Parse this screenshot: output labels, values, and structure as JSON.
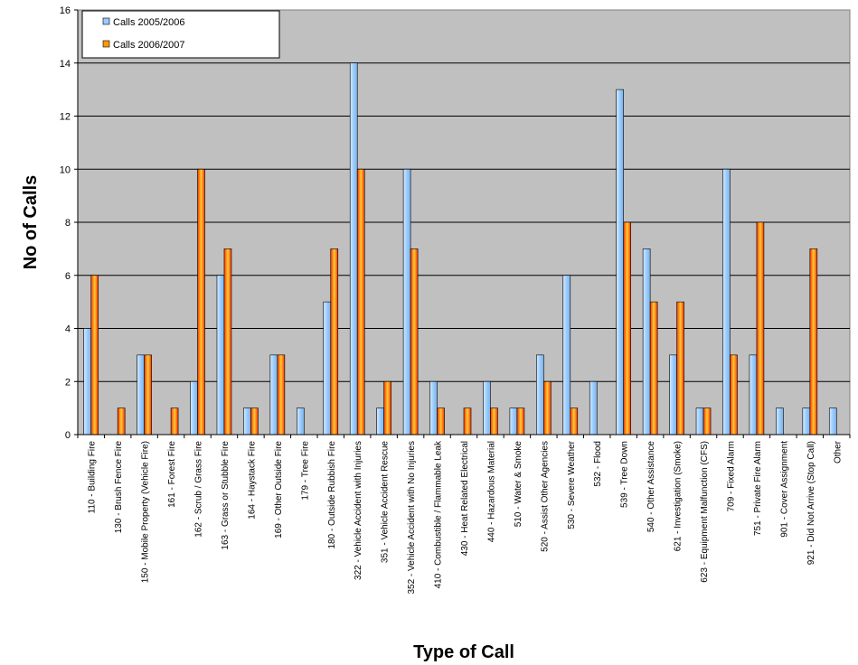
{
  "chart_data": {
    "type": "bar",
    "title": "",
    "xlabel": "Type of Call",
    "ylabel": "No of Calls",
    "ylim": [
      0,
      16
    ],
    "yticks": [
      0,
      2,
      4,
      6,
      8,
      10,
      12,
      14,
      16
    ],
    "grid": true,
    "legend_position": "top-left",
    "categories": [
      "110 - Building Fire",
      "130 - Brush Fence Fire",
      "150 - Mobile Property (Vehicle Fire)",
      "161 - Forest Fire",
      "162 - Scrub / Grass Fire",
      "163 - Grass or Stubble Fire",
      "164 - Haystack Fire",
      "169 - Other Outside Fire",
      "179 - Tree Fire",
      "180 - Outside Rubbish Fire",
      "322 - Vehicle Accident with Injuries",
      "351 - Vehicle Accident Rescue",
      "352 - Vehicle Accident with No Injuries",
      "410 - Combustible / Flammable Leak",
      "430 - Heat Related Electrical",
      "440 - Hazardous Material",
      "510 - Water & Smoke",
      "520 - Assist Other Agencies",
      "530 - Severe Weather",
      "532 - Flood",
      "539 - Tree Down",
      "540 - Other Assistance",
      "621 - Investigation (Smoke)",
      "623 - Equipment Malfunction (CFS)",
      "709 - Fixed Alarm",
      "751 - Private Fire Alarm",
      "901 - Cover Assignment",
      "921 - Did Not Arrive (Stop Call)",
      "Other"
    ],
    "series": [
      {
        "name": "Calls 2005/2006",
        "color": "#99ccff",
        "values": [
          4,
          0,
          3,
          0,
          2,
          6,
          1,
          3,
          1,
          5,
          14,
          1,
          10,
          2,
          0,
          2,
          1,
          3,
          6,
          2,
          13,
          7,
          3,
          1,
          10,
          3,
          1,
          1,
          1
        ]
      },
      {
        "name": "Calls 2006/2007",
        "color": "#ff9900",
        "values": [
          6,
          1,
          3,
          1,
          10,
          7,
          1,
          3,
          0,
          7,
          10,
          2,
          7,
          1,
          1,
          1,
          1,
          2,
          1,
          0,
          8,
          5,
          5,
          1,
          3,
          8,
          0,
          7,
          0
        ]
      }
    ],
    "colors": {
      "plot_background": "#c0c0c0",
      "gridline": "#000000"
    }
  }
}
